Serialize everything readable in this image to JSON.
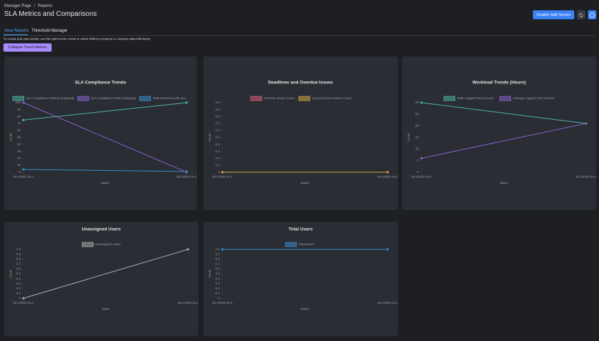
{
  "header": {
    "breadcrumb": [
      "Manager Page",
      "Reports"
    ],
    "title": "SLA Metrics and Comparisons",
    "buttons": [
      "Disable Split Screen"
    ]
  },
  "tabs": [
    "View Reports",
    "Threshold Manager"
  ],
  "description": "To create and view trends, use the split-screen mode or select different projects to compare data effectively.",
  "collapse_button": "Collapse Trend Metrics",
  "chart_data": [
    {
      "type": "line",
      "title": "SLA Compliance Trends",
      "x_label": "Dates",
      "y_label": "Count",
      "categories": [
        "ski-10002-SLA",
        "sla-10002-SLA"
      ],
      "series": [
        {
          "name": "SLA Compliance Rate (Completed)",
          "color": "#4fb8a8",
          "values": [
            75,
            100
          ]
        },
        {
          "name": "SLA Compliance Rate (Ongoing)",
          "color": "#8a63d2",
          "values": [
            100,
            0
          ]
        },
        {
          "name": "Total Resolved with SLA",
          "color": "#3a8fd0",
          "values": [
            4,
            1
          ]
        }
      ],
      "ylim": [
        0,
        100
      ],
      "yticks": [
        0,
        10,
        20,
        30,
        40,
        50,
        60,
        70,
        80,
        90,
        100
      ]
    },
    {
      "type": "line",
      "title": "Deadlines and Overdue Issues",
      "x_label": "Dates",
      "y_label": "Count",
      "categories": [
        "ski-10002-SLA",
        "sla-10002-SLA"
      ],
      "series": [
        {
          "name": "Overdue Issues Count",
          "color": "#e0607a",
          "values": [
            0,
            0
          ]
        },
        {
          "name": "Upcoming Due Issues Count",
          "color": "#d8a84a",
          "values": [
            0,
            0
          ]
        }
      ],
      "ylim": [
        0,
        1
      ],
      "yticks": [
        0,
        0.1,
        0.2,
        0.3,
        0.4,
        0.5,
        0.6,
        0.7,
        0.8,
        0.9,
        {
          "value": 1,
          "label": "1.0"
        }
      ]
    },
    {
      "type": "line",
      "title": "Workload Trends (Hours)",
      "x_label": "Dates",
      "y_label": "Count",
      "categories": [
        "ski-10002-SLA",
        "sla-10002-SLA"
      ],
      "series": [
        {
          "name": "Total Logged Time (Hours)",
          "color": "#4fb8a8",
          "values": [
            30,
            21
          ]
        },
        {
          "name": "Average Logged Time (Hours)",
          "color": "#8a63d2",
          "values": [
            6,
            21
          ]
        }
      ],
      "ylim": [
        0,
        30
      ],
      "yticks": [
        0,
        5,
        10,
        15,
        20,
        25,
        30
      ]
    },
    {
      "type": "line",
      "title": "Unassigned Users",
      "x_label": "Dates",
      "y_label": "Count",
      "categories": [
        "ski-10002-SLA",
        "sla-10002-SLA"
      ],
      "series": [
        {
          "name": "Unassigned Users",
          "color": "#b0b0b0",
          "values": [
            0,
            1
          ]
        }
      ],
      "ylim": [
        0,
        1
      ],
      "yticks": [
        0,
        0.1,
        0.2,
        0.3,
        0.4,
        0.5,
        0.6,
        0.7,
        0.8,
        0.9,
        {
          "value": 1,
          "label": "1.0"
        }
      ]
    },
    {
      "type": "line",
      "title": "Total Users",
      "x_label": "Dates",
      "y_label": "Count",
      "categories": [
        "ski-10002-SLA",
        "sla-10002-SLA"
      ],
      "series": [
        {
          "name": "Total Users",
          "color": "#3a8fd0",
          "values": [
            1,
            1
          ]
        }
      ],
      "ylim": [
        0,
        1
      ],
      "yticks": [
        0,
        0.1,
        0.2,
        0.3,
        0.4,
        0.5,
        0.6,
        0.7,
        0.8,
        0.9,
        {
          "value": 1,
          "label": "1.0"
        }
      ]
    }
  ]
}
